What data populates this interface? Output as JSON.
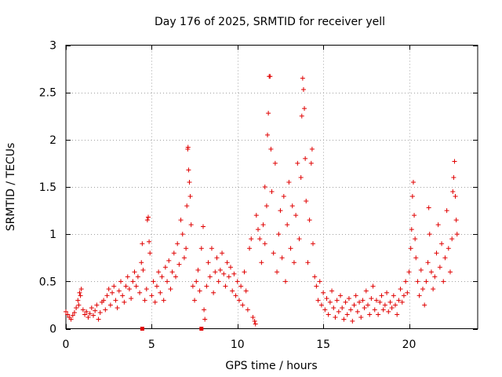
{
  "chart_data": {
    "type": "scatter",
    "title": "Day 176 of 2025, SRMTID for receiver yell",
    "xlabel": "GPS time / hours",
    "ylabel": "SRMTID / TECUs",
    "xlim": [
      0,
      24
    ],
    "ylim": [
      0,
      3
    ],
    "xticks": [
      0,
      5,
      10,
      15,
      20
    ],
    "yticks": [
      0,
      0.5,
      1,
      1.5,
      2,
      2.5,
      3
    ],
    "xtick_labels": [
      "0",
      "5",
      "10",
      "15",
      "20"
    ],
    "ytick_labels": [
      "0",
      "0.5",
      "1",
      "1.5",
      "2",
      "2.5",
      "3"
    ],
    "grid": true,
    "marker": "plus",
    "color": "#e00000",
    "series": [
      {
        "name": "SRMTID",
        "points": [
          [
            0.0,
            0.18
          ],
          [
            0.1,
            0.15
          ],
          [
            0.2,
            0.12
          ],
          [
            0.3,
            0.1
          ],
          [
            0.4,
            0.14
          ],
          [
            0.5,
            0.17
          ],
          [
            0.6,
            0.22
          ],
          [
            0.7,
            0.3
          ],
          [
            0.8,
            0.38
          ],
          [
            0.9,
            0.42
          ],
          [
            0.85,
            0.35
          ],
          [
            0.75,
            0.25
          ],
          [
            1.0,
            0.2
          ],
          [
            1.1,
            0.15
          ],
          [
            1.2,
            0.18
          ],
          [
            1.3,
            0.12
          ],
          [
            1.4,
            0.16
          ],
          [
            1.5,
            0.22
          ],
          [
            1.6,
            0.14
          ],
          [
            1.7,
            0.19
          ],
          [
            1.8,
            0.25
          ],
          [
            1.9,
            0.1
          ],
          [
            2.0,
            0.17
          ],
          [
            2.1,
            0.28
          ],
          [
            2.2,
            0.3
          ],
          [
            2.3,
            0.2
          ],
          [
            2.4,
            0.35
          ],
          [
            2.5,
            0.42
          ],
          [
            2.6,
            0.25
          ],
          [
            2.7,
            0.38
          ],
          [
            2.8,
            0.45
          ],
          [
            2.9,
            0.3
          ],
          [
            3.0,
            0.22
          ],
          [
            3.1,
            0.4
          ],
          [
            3.2,
            0.5
          ],
          [
            3.3,
            0.35
          ],
          [
            3.4,
            0.28
          ],
          [
            3.5,
            0.45
          ],
          [
            3.6,
            0.55
          ],
          [
            3.7,
            0.42
          ],
          [
            3.8,
            0.32
          ],
          [
            3.9,
            0.5
          ],
          [
            4.0,
            0.6
          ],
          [
            4.1,
            0.45
          ],
          [
            4.2,
            0.55
          ],
          [
            4.3,
            0.38
          ],
          [
            4.4,
            0.7
          ],
          [
            4.45,
            0.9
          ],
          [
            4.5,
            0.62
          ],
          [
            4.6,
            0.3
          ],
          [
            4.7,
            0.42
          ],
          [
            4.75,
            1.15
          ],
          [
            4.8,
            1.18
          ],
          [
            4.85,
            0.92
          ],
          [
            4.9,
            0.8
          ],
          [
            5.0,
            0.35
          ],
          [
            5.1,
            0.5
          ],
          [
            5.2,
            0.28
          ],
          [
            5.3,
            0.45
          ],
          [
            5.4,
            0.6
          ],
          [
            5.5,
            0.38
          ],
          [
            5.6,
            0.55
          ],
          [
            5.7,
            0.3
          ],
          [
            5.8,
            0.65
          ],
          [
            5.9,
            0.5
          ],
          [
            6.0,
            0.72
          ],
          [
            6.1,
            0.42
          ],
          [
            6.2,
            0.6
          ],
          [
            6.3,
            0.8
          ],
          [
            6.4,
            0.55
          ],
          [
            6.5,
            0.9
          ],
          [
            6.6,
            0.68
          ],
          [
            6.7,
            1.15
          ],
          [
            6.8,
            1.0
          ],
          [
            6.9,
            0.75
          ],
          [
            7.0,
            0.85
          ],
          [
            7.05,
            1.3
          ],
          [
            7.1,
            1.9
          ],
          [
            7.12,
            1.92
          ],
          [
            7.15,
            1.68
          ],
          [
            7.2,
            1.55
          ],
          [
            7.25,
            1.4
          ],
          [
            7.3,
            1.1
          ],
          [
            7.4,
            0.45
          ],
          [
            7.5,
            0.3
          ],
          [
            7.6,
            0.5
          ],
          [
            7.7,
            0.62
          ],
          [
            7.8,
            0.4
          ],
          [
            7.9,
            0.85
          ],
          [
            8.0,
            1.08
          ],
          [
            8.05,
            0.2
          ],
          [
            8.1,
            0.1
          ],
          [
            8.2,
            0.45
          ],
          [
            8.3,
            0.7
          ],
          [
            8.4,
            0.55
          ],
          [
            8.5,
            0.85
          ],
          [
            8.6,
            0.38
          ],
          [
            8.7,
            0.6
          ],
          [
            8.8,
            0.75
          ],
          [
            8.9,
            0.5
          ],
          [
            9.0,
            0.62
          ],
          [
            9.1,
            0.8
          ],
          [
            9.2,
            0.58
          ],
          [
            9.3,
            0.45
          ],
          [
            9.4,
            0.7
          ],
          [
            9.5,
            0.55
          ],
          [
            9.6,
            0.65
          ],
          [
            9.7,
            0.4
          ],
          [
            9.8,
            0.58
          ],
          [
            9.9,
            0.35
          ],
          [
            10.0,
            0.5
          ],
          [
            10.1,
            0.3
          ],
          [
            10.2,
            0.45
          ],
          [
            10.3,
            0.25
          ],
          [
            10.4,
            0.6
          ],
          [
            10.5,
            0.4
          ],
          [
            10.6,
            0.2
          ],
          [
            10.7,
            0.85
          ],
          [
            10.8,
            0.95
          ],
          [
            10.9,
            0.12
          ],
          [
            11.0,
            0.08
          ],
          [
            11.05,
            0.05
          ],
          [
            11.1,
            1.2
          ],
          [
            11.2,
            1.05
          ],
          [
            11.3,
            0.95
          ],
          [
            11.4,
            0.7
          ],
          [
            11.5,
            1.1
          ],
          [
            11.6,
            0.9
          ],
          [
            11.6,
            1.5
          ],
          [
            11.7,
            1.3
          ],
          [
            11.75,
            2.05
          ],
          [
            11.8,
            2.28
          ],
          [
            11.85,
            2.67
          ],
          [
            11.9,
            2.67
          ],
          [
            11.95,
            1.9
          ],
          [
            12.0,
            1.45
          ],
          [
            12.1,
            0.8
          ],
          [
            12.2,
            1.75
          ],
          [
            12.3,
            0.6
          ],
          [
            12.4,
            1.0
          ],
          [
            12.5,
            1.25
          ],
          [
            12.6,
            0.75
          ],
          [
            12.7,
            1.4
          ],
          [
            12.8,
            0.5
          ],
          [
            12.9,
            1.1
          ],
          [
            13.0,
            1.55
          ],
          [
            13.1,
            0.85
          ],
          [
            13.2,
            1.3
          ],
          [
            13.3,
            0.7
          ],
          [
            13.4,
            1.2
          ],
          [
            13.5,
            1.75
          ],
          [
            13.6,
            0.95
          ],
          [
            13.7,
            1.6
          ],
          [
            13.75,
            2.25
          ],
          [
            13.8,
            2.65
          ],
          [
            13.85,
            2.53
          ],
          [
            13.9,
            2.33
          ],
          [
            13.95,
            1.8
          ],
          [
            14.0,
            1.35
          ],
          [
            14.1,
            0.7
          ],
          [
            14.2,
            1.15
          ],
          [
            14.3,
            1.75
          ],
          [
            14.35,
            1.9
          ],
          [
            14.4,
            0.9
          ],
          [
            14.5,
            0.55
          ],
          [
            14.6,
            0.45
          ],
          [
            14.7,
            0.3
          ],
          [
            14.8,
            0.5
          ],
          [
            14.9,
            0.25
          ],
          [
            15.0,
            0.38
          ],
          [
            15.1,
            0.2
          ],
          [
            15.2,
            0.32
          ],
          [
            15.3,
            0.15
          ],
          [
            15.4,
            0.28
          ],
          [
            15.5,
            0.4
          ],
          [
            15.6,
            0.22
          ],
          [
            15.7,
            0.12
          ],
          [
            15.8,
            0.3
          ],
          [
            15.9,
            0.18
          ],
          [
            16.0,
            0.35
          ],
          [
            16.1,
            0.22
          ],
          [
            16.2,
            0.1
          ],
          [
            16.3,
            0.28
          ],
          [
            16.4,
            0.15
          ],
          [
            16.5,
            0.32
          ],
          [
            16.6,
            0.2
          ],
          [
            16.7,
            0.08
          ],
          [
            16.8,
            0.25
          ],
          [
            16.9,
            0.35
          ],
          [
            17.0,
            0.18
          ],
          [
            17.1,
            0.28
          ],
          [
            17.2,
            0.12
          ],
          [
            17.3,
            0.3
          ],
          [
            17.4,
            0.22
          ],
          [
            17.5,
            0.4
          ],
          [
            17.6,
            0.25
          ],
          [
            17.7,
            0.15
          ],
          [
            17.8,
            0.32
          ],
          [
            17.9,
            0.45
          ],
          [
            18.0,
            0.2
          ],
          [
            18.1,
            0.3
          ],
          [
            18.2,
            0.15
          ],
          [
            18.3,
            0.28
          ],
          [
            18.4,
            0.35
          ],
          [
            18.5,
            0.2
          ],
          [
            18.6,
            0.25
          ],
          [
            18.7,
            0.38
          ],
          [
            18.8,
            0.18
          ],
          [
            18.9,
            0.28
          ],
          [
            19.0,
            0.22
          ],
          [
            19.1,
            0.35
          ],
          [
            19.2,
            0.25
          ],
          [
            19.3,
            0.15
          ],
          [
            19.4,
            0.3
          ],
          [
            19.5,
            0.42
          ],
          [
            19.6,
            0.28
          ],
          [
            19.7,
            0.35
          ],
          [
            19.8,
            0.5
          ],
          [
            19.9,
            0.38
          ],
          [
            20.0,
            0.6
          ],
          [
            20.1,
            0.85
          ],
          [
            20.15,
            1.05
          ],
          [
            20.2,
            1.4
          ],
          [
            20.25,
            1.55
          ],
          [
            20.3,
            1.2
          ],
          [
            20.35,
            0.95
          ],
          [
            20.4,
            0.75
          ],
          [
            20.5,
            0.5
          ],
          [
            20.6,
            0.35
          ],
          [
            20.7,
            0.62
          ],
          [
            20.8,
            0.42
          ],
          [
            20.9,
            0.25
          ],
          [
            21.0,
            0.5
          ],
          [
            21.1,
            0.7
          ],
          [
            21.15,
            1.28
          ],
          [
            21.2,
            1.0
          ],
          [
            21.3,
            0.6
          ],
          [
            21.4,
            0.42
          ],
          [
            21.5,
            0.55
          ],
          [
            21.6,
            0.8
          ],
          [
            21.7,
            1.1
          ],
          [
            21.8,
            0.65
          ],
          [
            21.9,
            0.9
          ],
          [
            22.0,
            0.5
          ],
          [
            22.1,
            0.75
          ],
          [
            22.2,
            1.25
          ],
          [
            22.3,
            0.85
          ],
          [
            22.4,
            0.6
          ],
          [
            22.5,
            0.95
          ],
          [
            22.55,
            1.45
          ],
          [
            22.6,
            1.6
          ],
          [
            22.65,
            1.77
          ],
          [
            22.7,
            1.4
          ],
          [
            22.75,
            1.15
          ],
          [
            22.8,
            1.0
          ]
        ]
      }
    ],
    "square_markers": [
      [
        4.45,
        0.0
      ],
      [
        7.9,
        0.0
      ]
    ]
  }
}
